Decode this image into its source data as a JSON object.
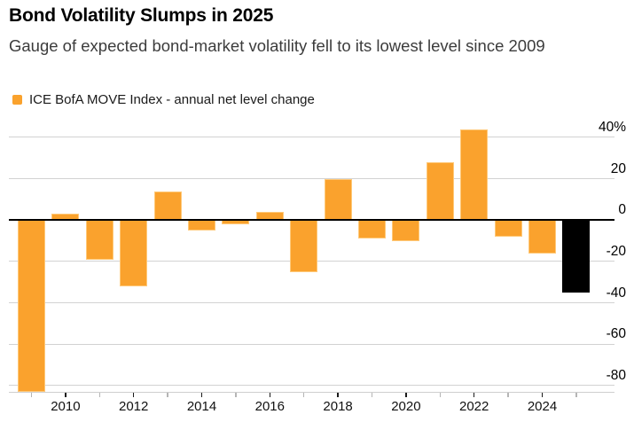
{
  "header": {
    "title": "Bond Volatility Slumps in 2025",
    "subtitle": "Gauge of expected bond-market volatility fell to its lowest level since 2009"
  },
  "legend": {
    "label": "ICE BofA MOVE Index - annual net level change",
    "swatch_color": "#FAA22D"
  },
  "chart_data": {
    "type": "bar",
    "title": "Bond Volatility Slumps in 2025",
    "subtitle": "Gauge of expected bond-market volatility fell to its lowest level since 2009",
    "series_name": "ICE BofA MOVE Index - annual net level change",
    "x": [
      2009,
      2010,
      2011,
      2012,
      2013,
      2014,
      2015,
      2016,
      2017,
      2018,
      2019,
      2020,
      2021,
      2022,
      2023,
      2024,
      2025
    ],
    "values": [
      -83,
      3,
      -19,
      -32,
      14,
      -5,
      -2,
      4,
      -25,
      20,
      -9,
      -10,
      28,
      44,
      -8,
      -16,
      -35
    ],
    "unit": "%",
    "ylim": [
      -83,
      44
    ],
    "y_ticks": [
      {
        "value": 40,
        "label": "40%"
      },
      {
        "value": 20,
        "label": "20"
      },
      {
        "value": 0,
        "label": "0"
      },
      {
        "value": -20,
        "label": "-20"
      },
      {
        "value": -40,
        "label": "-40"
      },
      {
        "value": -60,
        "label": "-60"
      },
      {
        "value": -80,
        "label": "-80"
      }
    ],
    "x_tick_labels": [
      "2010",
      "2012",
      "2014",
      "2016",
      "2018",
      "2020",
      "2022",
      "2024"
    ],
    "bar_color": "#FAA22D",
    "highlight": {
      "year": 2025,
      "color": "#000000"
    },
    "gridline_color": "#d2d2d2",
    "zero_line_color": "#000000",
    "grid": true,
    "legend_position": "top-left",
    "y_axis_side": "right"
  }
}
